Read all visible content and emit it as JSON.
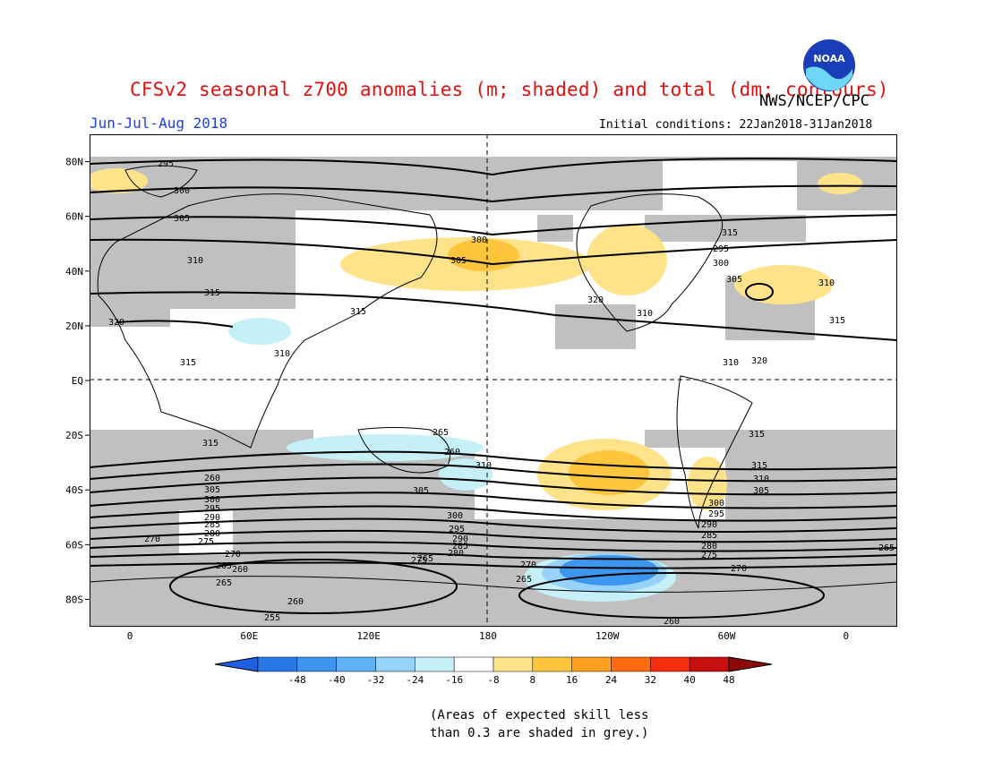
{
  "header": {
    "title": "CFSv2 seasonal z700 anomalies (m; shaded) and total (dm; contours)",
    "agency": "NWS/NCEP/CPC",
    "period": "Jun-Jul-Aug 2018",
    "initial_conditions": "Initial conditions: 22Jan2018-31Jan2018",
    "logo_text": "NOAA"
  },
  "map": {
    "lat_labels": [
      "80N",
      "60N",
      "40N",
      "20N",
      "EQ",
      "20S",
      "40S",
      "60S",
      "80S"
    ],
    "lon_labels": [
      "0",
      "60E",
      "120E",
      "180",
      "120W",
      "60W",
      "0"
    ],
    "contour_labels": [
      "295",
      "300",
      "305",
      "310",
      "315",
      "320",
      "300",
      "305",
      "310",
      "315",
      "320",
      "310",
      "310",
      "315",
      "295",
      "300",
      "305",
      "310",
      "315",
      "320",
      "315",
      "315",
      "315",
      "315",
      "310",
      "305",
      "300",
      "295",
      "290",
      "285",
      "280",
      "275",
      "270",
      "265",
      "260",
      "310",
      "305",
      "300",
      "295",
      "290",
      "285",
      "280",
      "275",
      "270",
      "265",
      "260",
      "265",
      "260",
      "265",
      "270",
      "255",
      "260",
      "265",
      "260",
      "305",
      "300",
      "295",
      "290",
      "285",
      "280",
      "275",
      "270",
      "265"
    ]
  },
  "legend": {
    "ticks": [
      "-48",
      "-40",
      "-32",
      "-24",
      "-16",
      "-8",
      "8",
      "16",
      "24",
      "32",
      "40",
      "48"
    ],
    "colors": [
      "#1e5ee0",
      "#2878e8",
      "#3c96ef",
      "#5fb0f5",
      "#96d2fa",
      "#c6f0f8",
      "#ffffff",
      "#ffe38a",
      "#ffc53c",
      "#fea020",
      "#fe6a10",
      "#f52e0e",
      "#c81010",
      "#8e0a0a"
    ]
  },
  "notes": [
    "(Areas of expected skill less",
    "than 0.3 are shaded in grey.)"
  ]
}
